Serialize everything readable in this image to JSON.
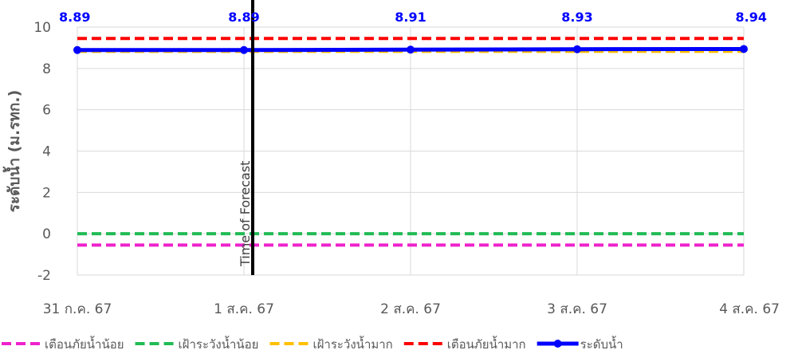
{
  "chart_data": {
    "type": "line",
    "title": "",
    "xlabel": "",
    "ylabel": "ระดับน้ำ (ม.รทก.)",
    "x": [
      "31 ก.ค. 67",
      "1 ส.ค. 67",
      "2 ส.ค. 67",
      "3 ส.ค. 67",
      "4 ส.ค. 67"
    ],
    "ylim": [
      -2,
      10
    ],
    "yticks": [
      "10",
      "8",
      "6",
      "4",
      "2",
      "0",
      "-2"
    ],
    "yticks_values": [
      10,
      8,
      6,
      4,
      2,
      0,
      -2
    ],
    "grid": true,
    "legend_position": "bottom",
    "series": [
      {
        "name": "เตือนภัยน้ำน้อย",
        "color": "#ee22cc",
        "dash": true,
        "values": [
          -0.55,
          -0.55,
          -0.55,
          -0.55,
          -0.55
        ]
      },
      {
        "name": "เฝ้าระวังน้ำน้อย",
        "color": "#22bb55",
        "dash": true,
        "values": [
          0.0,
          0.0,
          0.0,
          0.0,
          0.0
        ]
      },
      {
        "name": "เฝ้าระวังน้ำมาก",
        "color": "#ffc000",
        "dash": true,
        "values": [
          8.83,
          8.83,
          8.83,
          8.83,
          8.83
        ]
      },
      {
        "name": "เตือนภัยน้ำมาก",
        "color": "#ff0000",
        "dash": true,
        "values": [
          9.45,
          9.45,
          9.45,
          9.45,
          9.45
        ]
      },
      {
        "name": "ระดับน้ำ",
        "color": "#0000ff",
        "dash": false,
        "markers": true,
        "values": [
          8.89,
          8.89,
          8.91,
          8.93,
          8.94
        ],
        "data_labels": [
          "8.89",
          "8.89",
          "8.91",
          "8.93",
          "8.94"
        ]
      }
    ],
    "annotations": [
      {
        "text": "Time of Forecast",
        "x": "1 ส.ค. 67",
        "color": "#000000"
      }
    ]
  }
}
